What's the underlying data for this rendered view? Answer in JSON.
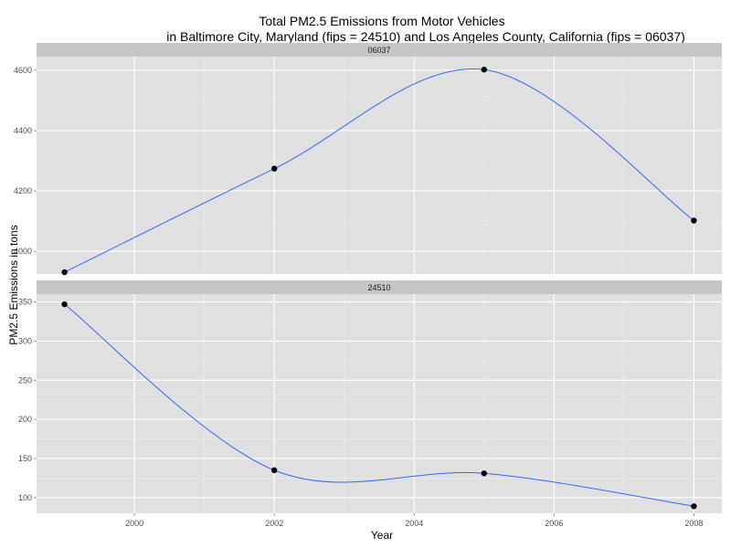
{
  "chart_data": {
    "type": "line",
    "title_line1": "Total PM2.5 Emissions from Motor Vehicles",
    "title_line2": "in Baltimore City, Maryland (fips = 24510) and Los Angeles County, California (fips = 06037)",
    "xlabel": "Year",
    "ylabel": "PM2.5 Emissions in tons",
    "x": [
      1999,
      2002,
      2005,
      2008
    ],
    "xlim": [
      1998.6,
      2008.4
    ],
    "x_ticks": [
      2000,
      2002,
      2004,
      2006,
      2008
    ],
    "grid": true,
    "facets": [
      {
        "label": "06037",
        "values": [
          3931,
          4274,
          4602,
          4102
        ],
        "ylim": [
          3925,
          4645
        ],
        "y_ticks": [
          4000,
          4200,
          4400,
          4600
        ]
      },
      {
        "label": "24510",
        "values": [
          347,
          135,
          131,
          89
        ],
        "ylim": [
          80,
          360
        ],
        "y_ticks": [
          100,
          150,
          200,
          250,
          300,
          350
        ]
      }
    ],
    "colors": {
      "line": "#3366ff",
      "point": "#000000",
      "panel": "#e0e0e0",
      "strip": "#c6c6c6",
      "grid_major": "#ffffff",
      "grid_minor": "#ececec"
    }
  }
}
